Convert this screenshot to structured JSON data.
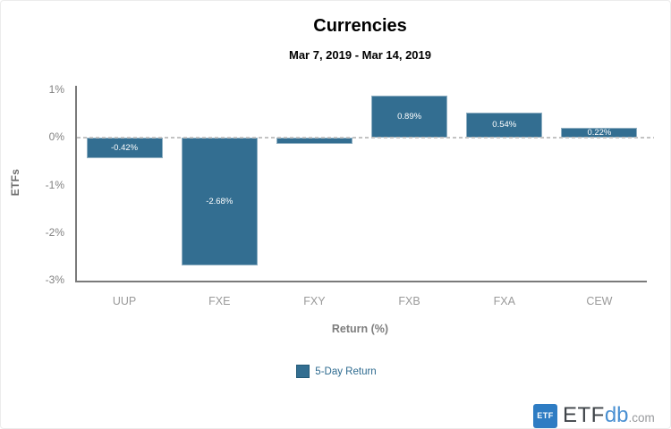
{
  "chart_data": {
    "type": "bar",
    "title": "Currencies",
    "subtitle": "Mar 7, 2019 - Mar 14, 2019",
    "xlabel": "Return (%)",
    "ylabel": "ETFs",
    "categories": [
      "UUP",
      "FXE",
      "FXY",
      "FXB",
      "FXA",
      "CEW"
    ],
    "series": [
      {
        "name": "5-Day Return",
        "values": [
          -0.42,
          -2.68,
          -0.13,
          0.89,
          0.54,
          0.22
        ],
        "labels": [
          "-0.42%",
          "-2.68%",
          "",
          "0.89%",
          "0.54%",
          "0.22%"
        ]
      }
    ],
    "ylim": [
      -3,
      1
    ],
    "yticks": [
      "1%",
      "0%",
      "-1%",
      "-2%",
      "-3%"
    ],
    "ytick_values": [
      1,
      0,
      -1,
      -2,
      -3
    ],
    "legend_position": "bottom-center",
    "grid": false,
    "zero_line": "dashed"
  },
  "colors": {
    "bar": "#336e91",
    "legend_swatch": "#336e91",
    "legend_swatch_border": "#235a77",
    "legend_text": "#2d6a8f",
    "logo_db_blue": "#4a90d2"
  },
  "branding": {
    "badge": "ETF",
    "name_etf": "ETF",
    "name_db": "db",
    "name_com": ".com"
  }
}
